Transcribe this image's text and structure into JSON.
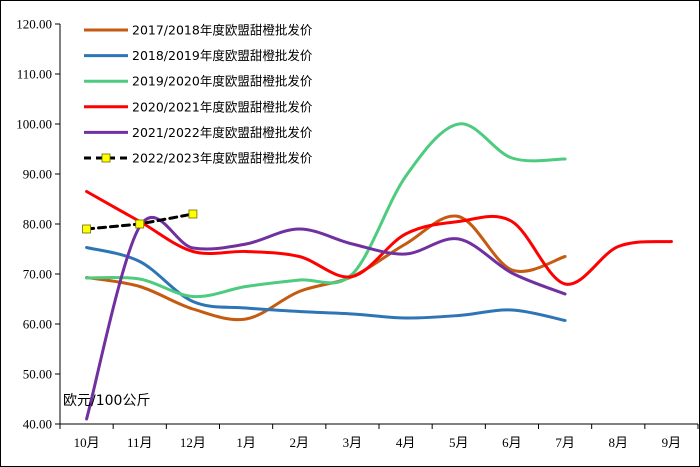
{
  "chart_data": {
    "type": "line",
    "categories": [
      "10月",
      "11月",
      "12月",
      "1月",
      "2月",
      "3月",
      "4月",
      "5月",
      "6月",
      "7月",
      "8月",
      "9月"
    ],
    "ylim": [
      40,
      120
    ],
    "yticks": [
      "40.00",
      "50.00",
      "60.00",
      "70.00",
      "80.00",
      "90.00",
      "100.00",
      "110.00",
      "120.00"
    ],
    "unit_label": "欧元/100公斤",
    "grid": false,
    "legend_position": "top-left",
    "series": [
      {
        "name": "2017/2018年度欧盟甜橙批发价",
        "color": "#C55A11",
        "dashed": false,
        "markers": false,
        "values": [
          69.3,
          67.5,
          63.0,
          61.0,
          66.5,
          69.5,
          76.0,
          81.5,
          70.8,
          73.5,
          null,
          null
        ]
      },
      {
        "name": "2018/2019年度欧盟甜橙批发价",
        "color": "#2E75B6",
        "dashed": false,
        "markers": false,
        "values": [
          75.3,
          72.5,
          64.5,
          63.2,
          62.5,
          62.0,
          61.2,
          61.7,
          62.8,
          60.7,
          null,
          null
        ]
      },
      {
        "name": "2019/2020年度欧盟甜橙批发价",
        "color": "#4DCB7E",
        "dashed": false,
        "markers": false,
        "values": [
          69.2,
          69.0,
          65.5,
          67.5,
          68.8,
          70.0,
          89.5,
          100.0,
          93.2,
          93.0,
          null,
          null
        ]
      },
      {
        "name": "2020/2021年度欧盟甜橙批发价",
        "color": "#FF0000",
        "dashed": false,
        "markers": false,
        "values": [
          86.5,
          80.5,
          74.5,
          74.5,
          73.5,
          69.5,
          78.0,
          80.5,
          80.5,
          68.0,
          75.5,
          76.5
        ]
      },
      {
        "name": "2021/2022年度欧盟甜橙批发价",
        "color": "#7030A0",
        "dashed": false,
        "markers": false,
        "values": [
          41.0,
          79.5,
          75.2,
          76.0,
          79.0,
          76.0,
          74.0,
          77.0,
          70.2,
          66.0,
          null,
          null
        ]
      },
      {
        "name": "2022/2023年度欧盟甜橙批发价",
        "color": "#000000",
        "dashed": true,
        "markers": true,
        "marker_color": "#FFFF00",
        "values": [
          79.0,
          80.0,
          82.0,
          null,
          null,
          null,
          null,
          null,
          null,
          null,
          null,
          null
        ]
      }
    ]
  }
}
